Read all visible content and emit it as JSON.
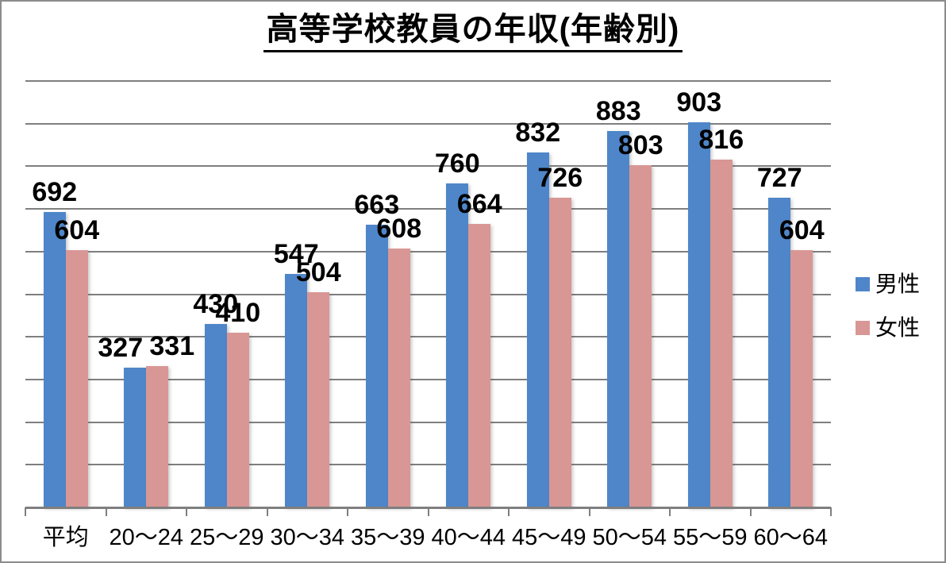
{
  "chart_data": {
    "type": "bar",
    "title": "高等学校教員の年収(年齢別)",
    "categories": [
      "平均",
      "20〜24",
      "25〜29",
      "30〜34",
      "35〜39",
      "40〜44",
      "45〜49",
      "50〜54",
      "55〜59",
      "60〜64"
    ],
    "series": [
      {
        "name": "男性",
        "color": "#4E86C9",
        "values": [
          692,
          327,
          430,
          547,
          663,
          760,
          832,
          883,
          903,
          727
        ]
      },
      {
        "name": "女性",
        "color": "#D89795",
        "values": [
          604,
          331,
          410,
          504,
          608,
          664,
          726,
          803,
          816,
          604
        ]
      }
    ],
    "ylim": [
      0,
      1000
    ],
    "y_major_unit": 100,
    "y_axis_labels_visible": false,
    "grid": true,
    "gridline_color": "#7F7F7F",
    "label_color": "#000000",
    "data_labels": "outside-end",
    "legend_position": "right"
  }
}
